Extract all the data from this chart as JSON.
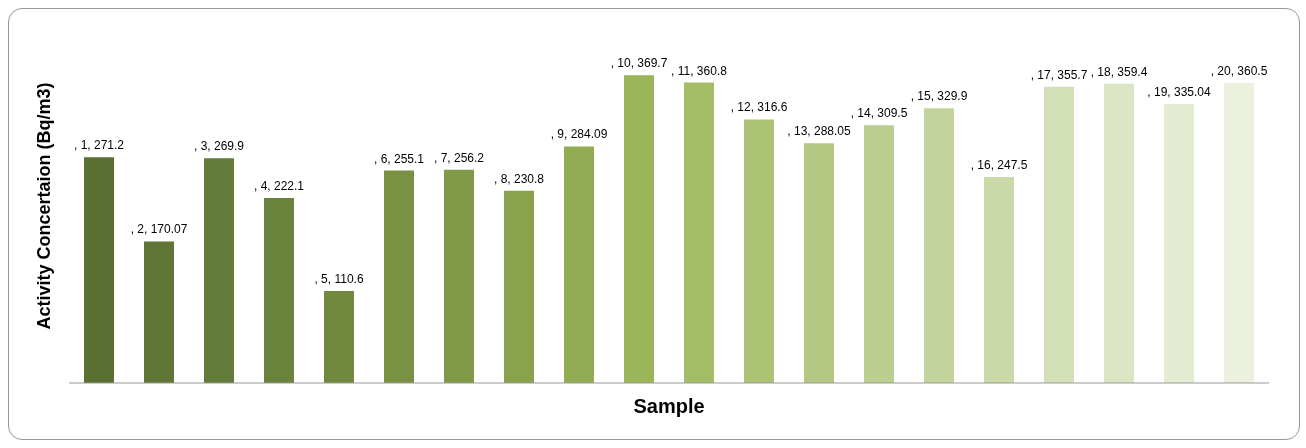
{
  "chart_data": {
    "type": "bar",
    "xlabel": "Sample",
    "ylabel": "Activity Concertaion (Bq/m3)",
    "categories": [
      null,
      null,
      null,
      null,
      null,
      null,
      null,
      null,
      null,
      null,
      null,
      null,
      null,
      null,
      null,
      null,
      null,
      null,
      null,
      null
    ],
    "values": [
      271.2,
      170.07,
      269.9,
      222.1,
      110.6,
      255.1,
      256.2,
      230.8,
      284.09,
      369.7,
      360.8,
      316.6,
      288.05,
      309.5,
      329.9,
      247.5,
      355.7,
      359.4,
      335.04,
      360.5
    ],
    "value_labels": [
      ", 1, 271.2",
      ", 2, 170.07",
      ", 3, 269.9",
      ", 4, 222.1",
      ", 5, 110.6",
      ", 6, 255.1",
      ", 7, 256.2",
      ", 8, 230.8",
      ", 9, 284.09",
      ", 10, 369.7",
      ", 11, 360.8",
      ", 12, 316.6",
      ", 13, 288.05",
      ", 14, 309.5",
      ", 15, 329.9",
      ", 16, 247.5",
      ", 17, 355.7",
      ", 18, 359.4",
      ", 19, 335.04",
      ", 20, 360.5"
    ],
    "colors": [
      "#5a7033",
      "#5f7636",
      "#647c39",
      "#6a833c",
      "#71893f",
      "#789142",
      "#809a47",
      "#89a34c",
      "#92ac53",
      "#9bb65a",
      "#a3bd66",
      "#abc274",
      "#b3c782",
      "#bbcd8f",
      "#c3d39c",
      "#cbd9a9",
      "#d3dfb6",
      "#dbe5c3",
      "#e3ebd0",
      "#ebf1dd"
    ],
    "grid": false,
    "legend": false
  }
}
